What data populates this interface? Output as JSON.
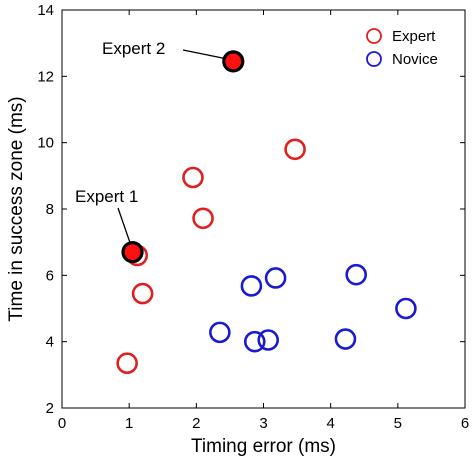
{
  "chart_data": {
    "type": "scatter",
    "xlabel": "Timing error (ms)",
    "ylabel": "Time in success zone (ms)",
    "xlim": [
      0,
      6
    ],
    "ylim": [
      2,
      14
    ],
    "xticks": [
      "0",
      "1",
      "2",
      "3",
      "4",
      "5",
      "6"
    ],
    "yticks": [
      "2",
      "4",
      "6",
      "8",
      "10",
      "12",
      "14"
    ],
    "grid": false,
    "legend": "top-right",
    "series": [
      {
        "name": "Expert",
        "color": "#e02020",
        "marker": "open-circle",
        "points": [
          {
            "x": 0.97,
            "y": 3.35
          },
          {
            "x": 1.12,
            "y": 6.6
          },
          {
            "x": 1.2,
            "y": 5.45
          },
          {
            "x": 1.95,
            "y": 8.95
          },
          {
            "x": 2.1,
            "y": 7.72
          },
          {
            "x": 3.47,
            "y": 9.8
          }
        ]
      },
      {
        "name": "Novice",
        "color": "#1a1ad0",
        "marker": "open-circle",
        "points": [
          {
            "x": 2.35,
            "y": 4.28
          },
          {
            "x": 2.82,
            "y": 5.68
          },
          {
            "x": 2.87,
            "y": 4.0
          },
          {
            "x": 3.07,
            "y": 4.05
          },
          {
            "x": 3.18,
            "y": 5.92
          },
          {
            "x": 4.22,
            "y": 4.08
          },
          {
            "x": 4.38,
            "y": 6.02
          },
          {
            "x": 5.12,
            "y": 5.0
          }
        ]
      }
    ],
    "highlights": [
      {
        "label": "Expert 1",
        "x": 1.05,
        "y": 6.7,
        "fill": "#ff1010"
      },
      {
        "label": "Expert 2",
        "x": 2.55,
        "y": 12.45,
        "fill": "#ff1010"
      }
    ]
  }
}
